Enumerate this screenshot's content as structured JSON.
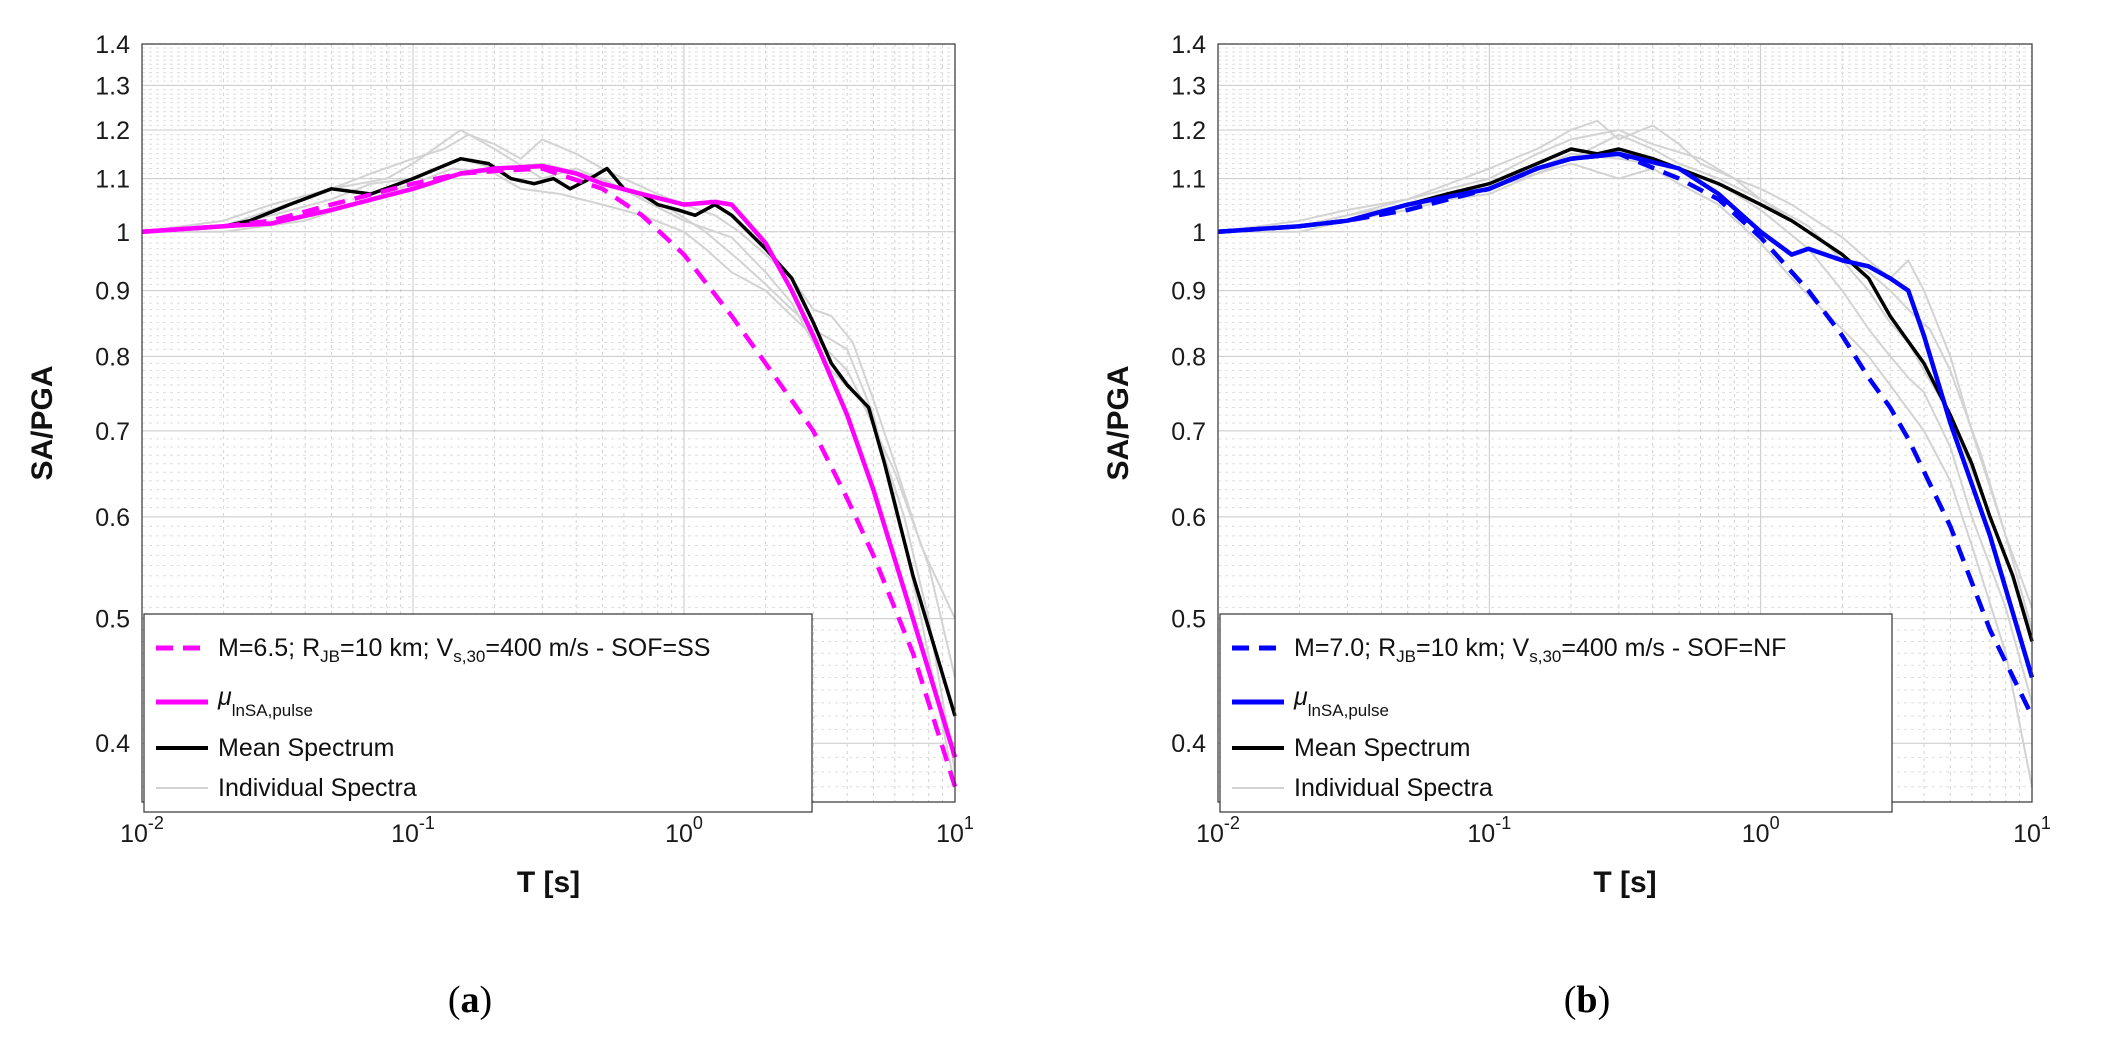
{
  "chart_data": [
    {
      "type": "line",
      "panel_label": "a",
      "xlabel": "T [s]",
      "ylabel": "SA/PGA",
      "xscale": "log",
      "yscale": "log",
      "xlim": [
        0.01,
        10
      ],
      "ylim": [
        0.36,
        1.4
      ],
      "grid": true,
      "legend_position": "bottom-left",
      "x_ticks": [
        {
          "v": 0.01,
          "base": "10",
          "exp": "-2"
        },
        {
          "v": 0.1,
          "base": "10",
          "exp": "-1"
        },
        {
          "v": 1,
          "base": "10",
          "exp": "0"
        },
        {
          "v": 10,
          "base": "10",
          "exp": "1"
        }
      ],
      "y_ticks": [
        {
          "v": 0.4,
          "label": "0.4"
        },
        {
          "v": 0.5,
          "label": "0.5"
        },
        {
          "v": 0.6,
          "label": "0.6"
        },
        {
          "v": 0.7,
          "label": "0.7"
        },
        {
          "v": 0.8,
          "label": "0.8"
        },
        {
          "v": 0.9,
          "label": "0.9"
        },
        {
          "v": 1.0,
          "label": "1"
        },
        {
          "v": 1.1,
          "label": "1.1"
        },
        {
          "v": 1.2,
          "label": "1.2"
        },
        {
          "v": 1.3,
          "label": "1.3"
        },
        {
          "v": 1.4,
          "label": "1.4"
        }
      ],
      "legend": {
        "scenario": {
          "pre": "M=6.5; R",
          "sub1": "JB",
          "mid": "=10 km; V",
          "sub2": "s,30",
          "post": "=400 m/s - SOF=SS"
        },
        "mu": {
          "sym": "μ",
          "sub": "lnSA,pulse"
        },
        "mean": "Mean Spectrum",
        "individual": "Individual Spectra"
      },
      "colors": {
        "main": "#ff00ff",
        "mean": "#000000",
        "individual": "#d3d3d3"
      },
      "series": [
        {
          "name": "scenario",
          "style": "dashed",
          "x": [
            0.01,
            0.02,
            0.03,
            0.05,
            0.1,
            0.15,
            0.2,
            0.3,
            0.5,
            0.7,
            1.0,
            1.5,
            2.0,
            3.0,
            4.0,
            5.0,
            7.0,
            10.0
          ],
          "y": [
            1.0,
            1.01,
            1.02,
            1.05,
            1.09,
            1.11,
            1.115,
            1.12,
            1.08,
            1.03,
            0.96,
            0.86,
            0.79,
            0.7,
            0.62,
            0.56,
            0.47,
            0.37
          ]
        },
        {
          "name": "mu",
          "style": "solid",
          "x": [
            0.01,
            0.02,
            0.03,
            0.05,
            0.1,
            0.15,
            0.2,
            0.3,
            0.4,
            0.5,
            0.7,
            1.0,
            1.3,
            1.5,
            2.0,
            2.5,
            3.0,
            4.0,
            5.0,
            7.0,
            10.0
          ],
          "y": [
            1.0,
            1.01,
            1.015,
            1.04,
            1.08,
            1.11,
            1.12,
            1.125,
            1.11,
            1.09,
            1.07,
            1.05,
            1.055,
            1.05,
            0.98,
            0.9,
            0.83,
            0.72,
            0.63,
            0.5,
            0.39
          ]
        },
        {
          "name": "mean",
          "style": "solid",
          "x": [
            0.01,
            0.02,
            0.025,
            0.035,
            0.05,
            0.07,
            0.1,
            0.15,
            0.19,
            0.23,
            0.28,
            0.33,
            0.38,
            0.45,
            0.52,
            0.6,
            0.7,
            0.8,
            0.95,
            1.1,
            1.3,
            1.5,
            2.0,
            2.5,
            3.0,
            3.5,
            4.0,
            4.8,
            5.5,
            7.0,
            10.0
          ],
          "y": [
            1.0,
            1.01,
            1.02,
            1.05,
            1.08,
            1.07,
            1.1,
            1.14,
            1.13,
            1.1,
            1.09,
            1.1,
            1.08,
            1.1,
            1.12,
            1.08,
            1.07,
            1.05,
            1.04,
            1.03,
            1.05,
            1.03,
            0.97,
            0.92,
            0.85,
            0.79,
            0.76,
            0.73,
            0.66,
            0.54,
            0.42
          ]
        },
        {
          "name": "individual",
          "style": "solid",
          "x": [
            0.01,
            0.02,
            0.03,
            0.05,
            0.07,
            0.1,
            0.13,
            0.16,
            0.2,
            0.25,
            0.3,
            0.4,
            0.5,
            0.6,
            0.8,
            1.0,
            1.3,
            1.6,
            2.0,
            2.5,
            3.0,
            3.5,
            4.2,
            5.0,
            6.0,
            7.5,
            10.0
          ],
          "y": [
            1.0,
            1.01,
            1.04,
            1.08,
            1.11,
            1.14,
            1.16,
            1.19,
            1.17,
            1.14,
            1.18,
            1.15,
            1.12,
            1.1,
            1.07,
            1.05,
            1.03,
            1.0,
            0.96,
            0.92,
            0.87,
            0.86,
            0.82,
            0.74,
            0.66,
            0.57,
            0.5
          ]
        },
        {
          "name": "individual",
          "style": "solid",
          "x": [
            0.01,
            0.02,
            0.04,
            0.06,
            0.1,
            0.14,
            0.2,
            0.25,
            0.35,
            0.5,
            0.7,
            1.0,
            1.2,
            1.5,
            2.0,
            2.5,
            3.0,
            4.0,
            5.0,
            6.5,
            8.0,
            10.0
          ],
          "y": [
            1.0,
            1.0,
            1.02,
            1.05,
            1.09,
            1.12,
            1.11,
            1.08,
            1.07,
            1.05,
            1.03,
            1.0,
            0.97,
            0.93,
            0.9,
            0.86,
            0.83,
            0.78,
            0.71,
            0.6,
            0.5,
            0.38
          ]
        },
        {
          "name": "individual",
          "style": "solid",
          "x": [
            0.01,
            0.02,
            0.03,
            0.05,
            0.08,
            0.1,
            0.15,
            0.2,
            0.3,
            0.4,
            0.6,
            0.9,
            1.2,
            1.6,
            2.0,
            2.5,
            3.0,
            4.0,
            5.0,
            6.0,
            7.5,
            10.0
          ],
          "y": [
            1.0,
            1.02,
            1.05,
            1.08,
            1.1,
            1.13,
            1.2,
            1.16,
            1.1,
            1.12,
            1.08,
            1.04,
            1.0,
            0.95,
            0.91,
            0.87,
            0.84,
            0.81,
            0.72,
            0.62,
            0.5,
            0.37
          ]
        },
        {
          "name": "individual",
          "style": "solid",
          "x": [
            0.01,
            0.02,
            0.03,
            0.05,
            0.07,
            0.1,
            0.15,
            0.2,
            0.3,
            0.5,
            0.7,
            1.0,
            1.5,
            2.0,
            2.5,
            3.0,
            3.5,
            4.5,
            6.0,
            8.0,
            10.0
          ],
          "y": [
            1.0,
            1.01,
            1.03,
            1.06,
            1.09,
            1.1,
            1.14,
            1.12,
            1.13,
            1.1,
            1.06,
            1.02,
            0.99,
            0.93,
            0.88,
            0.82,
            0.78,
            0.74,
            0.65,
            0.55,
            0.45
          ]
        }
      ]
    },
    {
      "type": "line",
      "panel_label": "b",
      "xlabel": "T [s]",
      "ylabel": "SA/PGA",
      "xscale": "log",
      "yscale": "log",
      "xlim": [
        0.01,
        10
      ],
      "ylim": [
        0.36,
        1.4
      ],
      "grid": true,
      "legend_position": "bottom-left",
      "x_ticks": [
        {
          "v": 0.01,
          "base": "10",
          "exp": "-2"
        },
        {
          "v": 0.1,
          "base": "10",
          "exp": "-1"
        },
        {
          "v": 1,
          "base": "10",
          "exp": "0"
        },
        {
          "v": 10,
          "base": "10",
          "exp": "1"
        }
      ],
      "y_ticks": [
        {
          "v": 0.4,
          "label": "0.4"
        },
        {
          "v": 0.5,
          "label": "0.5"
        },
        {
          "v": 0.6,
          "label": "0.6"
        },
        {
          "v": 0.7,
          "label": "0.7"
        },
        {
          "v": 0.8,
          "label": "0.8"
        },
        {
          "v": 0.9,
          "label": "0.9"
        },
        {
          "v": 1.0,
          "label": "1"
        },
        {
          "v": 1.1,
          "label": "1.1"
        },
        {
          "v": 1.2,
          "label": "1.2"
        },
        {
          "v": 1.3,
          "label": "1.3"
        },
        {
          "v": 1.4,
          "label": "1.4"
        }
      ],
      "legend": {
        "scenario": {
          "pre": "M=7.0; R",
          "sub1": "JB",
          "mid": "=10 km; V",
          "sub2": "s,30",
          "post": "=400 m/s - SOF=NF"
        },
        "mu": {
          "sym": "μ",
          "sub": "lnSA,pulse"
        },
        "mean": "Mean Spectrum",
        "individual": "Individual Spectra"
      },
      "colors": {
        "main": "#0000ff",
        "mean": "#000000",
        "individual": "#d3d3d3"
      },
      "series": [
        {
          "name": "scenario",
          "style": "dashed",
          "x": [
            0.01,
            0.02,
            0.03,
            0.05,
            0.1,
            0.15,
            0.2,
            0.3,
            0.5,
            0.7,
            1.0,
            1.5,
            2.0,
            2.5,
            3.0,
            3.5,
            5.0,
            7.0,
            10.0
          ],
          "y": [
            1.0,
            1.01,
            1.02,
            1.04,
            1.08,
            1.12,
            1.14,
            1.15,
            1.1,
            1.06,
            0.99,
            0.9,
            0.83,
            0.77,
            0.73,
            0.69,
            0.59,
            0.49,
            0.42
          ]
        },
        {
          "name": "mu",
          "style": "solid",
          "x": [
            0.01,
            0.02,
            0.03,
            0.05,
            0.1,
            0.15,
            0.2,
            0.3,
            0.5,
            0.7,
            1.0,
            1.3,
            1.5,
            2.0,
            2.5,
            3.0,
            3.5,
            4.0,
            5.0,
            7.0,
            10.0
          ],
          "y": [
            1.0,
            1.01,
            1.02,
            1.05,
            1.08,
            1.12,
            1.14,
            1.15,
            1.12,
            1.07,
            1.0,
            0.96,
            0.97,
            0.95,
            0.94,
            0.92,
            0.9,
            0.83,
            0.71,
            0.58,
            0.45
          ]
        },
        {
          "name": "mean",
          "style": "solid",
          "x": [
            0.01,
            0.02,
            0.03,
            0.05,
            0.07,
            0.1,
            0.15,
            0.2,
            0.25,
            0.3,
            0.4,
            0.5,
            0.7,
            1.0,
            1.3,
            1.5,
            2.0,
            2.5,
            3.0,
            4.0,
            5.0,
            6.0,
            7.0,
            8.5,
            10.0
          ],
          "y": [
            1.0,
            1.01,
            1.02,
            1.05,
            1.07,
            1.09,
            1.13,
            1.16,
            1.15,
            1.16,
            1.14,
            1.12,
            1.09,
            1.05,
            1.02,
            1.0,
            0.96,
            0.92,
            0.86,
            0.79,
            0.72,
            0.66,
            0.6,
            0.54,
            0.48
          ]
        },
        {
          "name": "individual",
          "style": "solid",
          "x": [
            0.01,
            0.02,
            0.03,
            0.05,
            0.08,
            0.1,
            0.15,
            0.2,
            0.25,
            0.3,
            0.4,
            0.5,
            0.6,
            0.8,
            1.0,
            1.3,
            1.6,
            2.0,
            2.5,
            3.0,
            3.5,
            4.0,
            5.0,
            6.0,
            8.0,
            10.0
          ],
          "y": [
            1.0,
            1.01,
            1.03,
            1.06,
            1.1,
            1.12,
            1.16,
            1.2,
            1.22,
            1.18,
            1.21,
            1.17,
            1.13,
            1.1,
            1.08,
            1.05,
            1.02,
            0.99,
            0.95,
            0.92,
            0.95,
            0.9,
            0.8,
            0.7,
            0.58,
            0.49
          ]
        },
        {
          "name": "individual",
          "style": "solid",
          "x": [
            0.01,
            0.02,
            0.03,
            0.05,
            0.1,
            0.15,
            0.2,
            0.3,
            0.4,
            0.5,
            0.7,
            1.0,
            1.3,
            1.6,
            2.0,
            2.5,
            3.0,
            4.0,
            5.0,
            6.0,
            8.0,
            10.0
          ],
          "y": [
            1.0,
            1.0,
            1.02,
            1.05,
            1.07,
            1.11,
            1.13,
            1.1,
            1.12,
            1.09,
            1.05,
            0.98,
            0.92,
            0.88,
            0.84,
            0.8,
            0.76,
            0.7,
            0.64,
            0.57,
            0.47,
            0.37
          ]
        },
        {
          "name": "individual",
          "style": "solid",
          "x": [
            0.01,
            0.02,
            0.03,
            0.05,
            0.1,
            0.15,
            0.2,
            0.3,
            0.4,
            0.6,
            0.8,
            1.0,
            1.5,
            2.0,
            2.5,
            3.0,
            3.5,
            4.2,
            5.0,
            6.5,
            8.0,
            10.0
          ],
          "y": [
            1.0,
            1.02,
            1.04,
            1.06,
            1.1,
            1.15,
            1.18,
            1.2,
            1.17,
            1.14,
            1.1,
            1.06,
            1.0,
            0.96,
            0.93,
            0.9,
            0.87,
            0.84,
            0.78,
            0.67,
            0.58,
            0.51
          ]
        },
        {
          "name": "individual",
          "style": "solid",
          "x": [
            0.01,
            0.02,
            0.03,
            0.05,
            0.1,
            0.15,
            0.2,
            0.3,
            0.5,
            0.7,
            1.0,
            1.5,
            2.0,
            2.5,
            3.0,
            3.5,
            4.0,
            5.0,
            6.0,
            8.0,
            10.0
          ],
          "y": [
            1.0,
            1.01,
            1.03,
            1.05,
            1.09,
            1.12,
            1.15,
            1.14,
            1.12,
            1.09,
            1.04,
            0.97,
            0.9,
            0.84,
            0.8,
            0.77,
            0.75,
            0.68,
            0.6,
            0.51,
            0.43
          ]
        },
        {
          "name": "individual",
          "style": "solid",
          "x": [
            0.01,
            0.02,
            0.03,
            0.05,
            0.1,
            0.15,
            0.2,
            0.3,
            0.4,
            0.5,
            0.7,
            1.0,
            1.5,
            2.0,
            2.5,
            3.0,
            3.5,
            4.0,
            5.0,
            7.0,
            10.0
          ],
          "y": [
            1.0,
            1.01,
            1.02,
            1.04,
            1.08,
            1.11,
            1.14,
            1.19,
            1.16,
            1.13,
            1.1,
            1.06,
            1.01,
            0.95,
            0.9,
            0.85,
            0.82,
            0.78,
            0.72,
            0.6,
            0.49
          ]
        }
      ]
    }
  ]
}
